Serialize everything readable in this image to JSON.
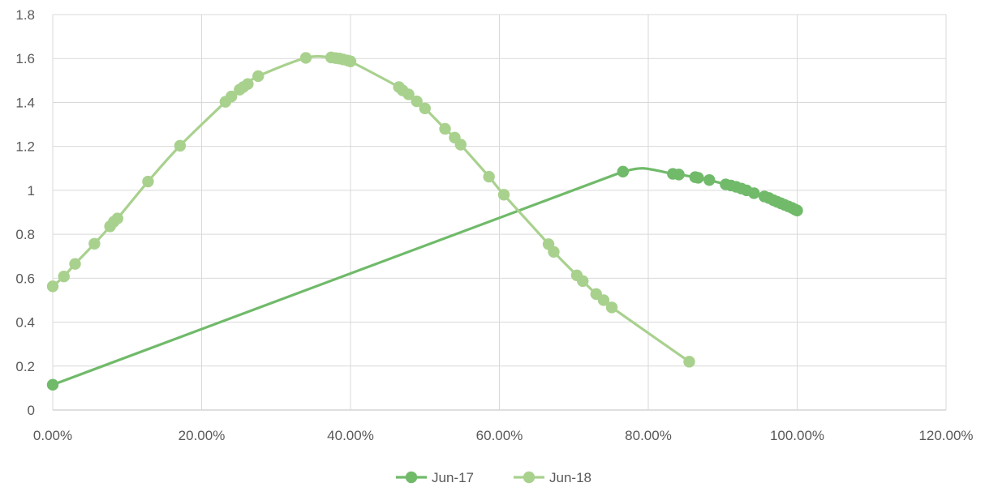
{
  "chart_data": {
    "type": "scatter",
    "title": "",
    "xlabel": "",
    "ylabel": "",
    "xlim": [
      0,
      1.2
    ],
    "ylim": [
      0,
      1.8
    ],
    "x_ticks": [
      0,
      0.2,
      0.4,
      0.6,
      0.8,
      1.0,
      1.2
    ],
    "x_tick_labels": [
      "0.00%",
      "20.00%",
      "40.00%",
      "60.00%",
      "80.00%",
      "100.00%",
      "120.00%"
    ],
    "y_ticks": [
      0,
      0.2,
      0.4,
      0.6,
      0.8,
      1.0,
      1.2,
      1.4,
      1.6,
      1.8
    ],
    "y_tick_labels": [
      "0",
      "0.2",
      "0.4",
      "0.6",
      "0.8",
      "1",
      "1.2",
      "1.4",
      "1.6",
      "1.8"
    ],
    "grid": true,
    "legend_position": "bottom",
    "series": [
      {
        "name": "Jun-17",
        "color": "#70ba6a",
        "points": [
          [
            0.0,
            0.115
          ],
          [
            0.766,
            1.085
          ],
          [
            0.833,
            1.075
          ],
          [
            0.841,
            1.072
          ],
          [
            0.863,
            1.06
          ],
          [
            0.867,
            1.057
          ],
          [
            0.882,
            1.047
          ],
          [
            0.904,
            1.027
          ],
          [
            0.911,
            1.022
          ],
          [
            0.918,
            1.016
          ],
          [
            0.925,
            1.008
          ],
          [
            0.932,
            1.0
          ],
          [
            0.942,
            0.987
          ],
          [
            0.956,
            0.972
          ],
          [
            0.962,
            0.965
          ],
          [
            0.968,
            0.955
          ],
          [
            0.973,
            0.948
          ],
          [
            0.978,
            0.941
          ],
          [
            0.983,
            0.934
          ],
          [
            0.988,
            0.927
          ],
          [
            0.993,
            0.92
          ],
          [
            0.997,
            0.913
          ],
          [
            1.0,
            0.908
          ]
        ],
        "curve_through": [
          0.793,
          1.1
        ]
      },
      {
        "name": "Jun-18",
        "color": "#a9d18e",
        "points": [
          [
            0.0,
            0.563
          ],
          [
            0.015,
            0.608
          ],
          [
            0.03,
            0.665
          ],
          [
            0.056,
            0.757
          ],
          [
            0.077,
            0.836
          ],
          [
            0.082,
            0.857
          ],
          [
            0.087,
            0.872
          ],
          [
            0.128,
            1.04
          ],
          [
            0.171,
            1.203
          ],
          [
            0.232,
            1.403
          ],
          [
            0.24,
            1.427
          ],
          [
            0.251,
            1.458
          ],
          [
            0.256,
            1.47
          ],
          [
            0.262,
            1.484
          ],
          [
            0.276,
            1.52
          ],
          [
            0.34,
            1.603
          ],
          [
            0.374,
            1.605
          ],
          [
            0.38,
            1.602
          ],
          [
            0.385,
            1.6
          ],
          [
            0.39,
            1.596
          ],
          [
            0.396,
            1.591
          ],
          [
            0.4,
            1.587
          ],
          [
            0.465,
            1.47
          ],
          [
            0.47,
            1.455
          ],
          [
            0.478,
            1.437
          ],
          [
            0.489,
            1.405
          ],
          [
            0.5,
            1.373
          ],
          [
            0.527,
            1.28
          ],
          [
            0.54,
            1.24
          ],
          [
            0.548,
            1.208
          ],
          [
            0.586,
            1.062
          ],
          [
            0.606,
            0.98
          ],
          [
            0.666,
            0.755
          ],
          [
            0.673,
            0.72
          ],
          [
            0.704,
            0.613
          ],
          [
            0.712,
            0.587
          ],
          [
            0.73,
            0.528
          ],
          [
            0.74,
            0.5
          ],
          [
            0.751,
            0.467
          ],
          [
            0.855,
            0.22
          ]
        ]
      }
    ]
  }
}
